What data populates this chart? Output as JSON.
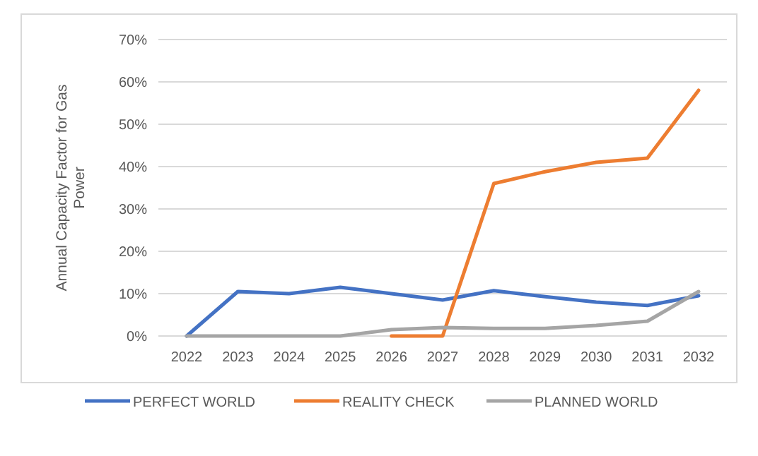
{
  "chart_data": {
    "type": "line",
    "ylabel": "Annual Capacity Factor for Gas Power",
    "categories": [
      "2022",
      "2023",
      "2024",
      "2025",
      "2026",
      "2027",
      "2028",
      "2029",
      "2030",
      "2031",
      "2032"
    ],
    "series": [
      {
        "name": "PERFECT WORLD",
        "color": "#4472c4",
        "values": [
          0,
          10.5,
          10,
          11.5,
          10,
          8.5,
          10.7,
          9.3,
          8,
          7.2,
          9.5
        ]
      },
      {
        "name": "REALITY CHECK",
        "color": "#ed7d31",
        "values": [
          null,
          null,
          null,
          null,
          0,
          0,
          36,
          38.8,
          41,
          42,
          58
        ]
      },
      {
        "name": "PLANNED WORLD",
        "color": "#a5a5a5",
        "values": [
          0,
          0,
          0,
          0,
          1.5,
          2,
          1.8,
          1.8,
          2.5,
          3.5,
          10.5
        ]
      }
    ],
    "ylim": [
      0,
      70
    ],
    "yticks": [
      {
        "value": 0,
        "label": "0%"
      },
      {
        "value": 10,
        "label": "10%"
      },
      {
        "value": 20,
        "label": "20%"
      },
      {
        "value": 30,
        "label": "30%"
      },
      {
        "value": 40,
        "label": "40%"
      },
      {
        "value": 50,
        "label": "50%"
      },
      {
        "value": 60,
        "label": "60%"
      },
      {
        "value": 70,
        "label": "70%"
      }
    ],
    "grid": "y",
    "legend": "bottom",
    "marker": "none",
    "line_style": "solid"
  }
}
